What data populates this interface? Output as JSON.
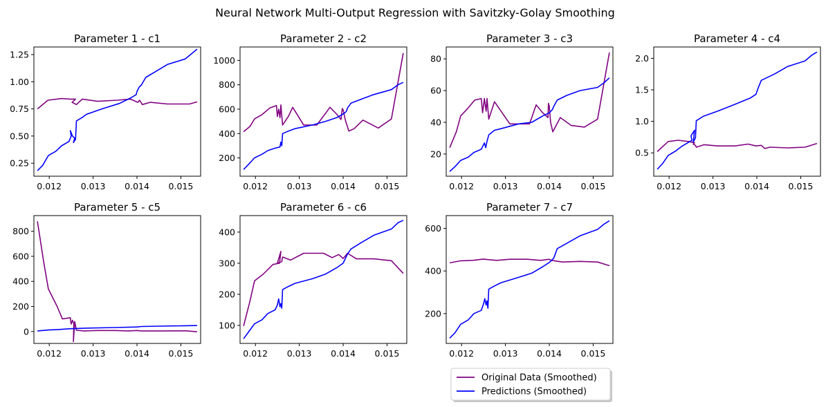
{
  "figure": {
    "title": "Neural Network Multi-Output Regression with Savitzky-Golay Smoothing"
  },
  "legend": {
    "placement": "bottom-center",
    "entries": [
      {
        "label": "Original Data (Smoothed)",
        "color": "#800080"
      },
      {
        "label": "Predictions (Smoothed)",
        "color": "#0000ff"
      }
    ]
  },
  "colors": {
    "original": "#800080",
    "predictions": "#0000ff",
    "axis": "#000000"
  },
  "chart_data": [
    {
      "type": "line",
      "title": "Parameter 1 - c1",
      "xlim": [
        0.01165,
        0.01545
      ],
      "ylim": [
        0.13,
        1.32
      ],
      "xticks": [
        0.012,
        0.013,
        0.014,
        0.015
      ],
      "xtick_labels": [
        "0.012",
        "0.013",
        "0.014",
        "0.015"
      ],
      "yticks": [
        0.25,
        0.5,
        0.75,
        1.0,
        1.25
      ],
      "ytick_labels": [
        "0.25",
        "0.50",
        "0.75",
        "1.00",
        "1.25"
      ],
      "series": [
        {
          "name": "Original Data (Smoothed)",
          "color": "#800080",
          "x": [
            0.01173,
            0.01197,
            0.01228,
            0.01248,
            0.0126,
            0.01252,
            0.01262,
            0.01275,
            0.0131,
            0.01355,
            0.01385,
            0.01402,
            0.01406,
            0.01412,
            0.0143,
            0.0147,
            0.0152,
            0.01537
          ],
          "y": [
            0.75,
            0.83,
            0.845,
            0.84,
            0.84,
            0.81,
            0.79,
            0.84,
            0.82,
            0.83,
            0.84,
            0.81,
            0.83,
            0.79,
            0.81,
            0.795,
            0.795,
            0.815
          ]
        },
        {
          "name": "Predictions (Smoothed)",
          "color": "#0000ff",
          "x": [
            0.01173,
            0.01185,
            0.01198,
            0.01215,
            0.01228,
            0.01245,
            0.0125,
            0.01248,
            0.01253,
            0.01258,
            0.01255,
            0.0126,
            0.01262,
            0.01275,
            0.01285,
            0.0132,
            0.0136,
            0.01385,
            0.01398,
            0.014,
            0.01405,
            0.0141,
            0.0142,
            0.01445,
            0.0147,
            0.0151,
            0.01522,
            0.01537
          ],
          "y": [
            0.18,
            0.23,
            0.32,
            0.36,
            0.41,
            0.45,
            0.5,
            0.55,
            0.5,
            0.48,
            0.44,
            0.47,
            0.64,
            0.67,
            0.7,
            0.75,
            0.8,
            0.85,
            0.88,
            0.91,
            0.95,
            0.97,
            1.04,
            1.1,
            1.16,
            1.21,
            1.25,
            1.3
          ]
        }
      ]
    },
    {
      "type": "line",
      "title": "Parameter 2 - c2",
      "xlim": [
        0.01165,
        0.01545
      ],
      "ylim": [
        50,
        1110
      ],
      "xticks": [
        0.012,
        0.013,
        0.014,
        0.015
      ],
      "xtick_labels": [
        "0.012",
        "0.013",
        "0.014",
        "0.015"
      ],
      "yticks": [
        200,
        400,
        600,
        800,
        1000
      ],
      "ytick_labels": [
        "200",
        "400",
        "600",
        "800",
        "1000"
      ],
      "series": [
        {
          "name": "Original Data (Smoothed)",
          "color": "#800080",
          "x": [
            0.01173,
            0.01188,
            0.01198,
            0.01215,
            0.01233,
            0.01248,
            0.0125,
            0.01253,
            0.01256,
            0.01258,
            0.01262,
            0.01275,
            0.01285,
            0.0131,
            0.0134,
            0.0137,
            0.01385,
            0.01395,
            0.01398,
            0.014,
            0.01405,
            0.01413,
            0.01425,
            0.01445,
            0.0148,
            0.0151,
            0.01537
          ],
          "y": [
            415,
            460,
            520,
            555,
            610,
            630,
            540,
            600,
            530,
            635,
            470,
            540,
            615,
            470,
            470,
            615,
            560,
            515,
            605,
            595,
            510,
            420,
            440,
            510,
            445,
            520,
            1060
          ]
        },
        {
          "name": "Predictions (Smoothed)",
          "color": "#0000ff",
          "x": [
            0.01173,
            0.01185,
            0.01198,
            0.01215,
            0.01228,
            0.01245,
            0.01256,
            0.01258,
            0.0126,
            0.01262,
            0.01275,
            0.0129,
            0.0133,
            0.0136,
            0.01385,
            0.014,
            0.01407,
            0.0141,
            0.01418,
            0.0144,
            0.0147,
            0.0151,
            0.01525,
            0.01537
          ],
          "y": [
            105,
            150,
            200,
            230,
            260,
            280,
            290,
            330,
            300,
            400,
            420,
            440,
            470,
            500,
            530,
            560,
            580,
            610,
            650,
            680,
            720,
            760,
            800,
            820
          ]
        }
      ]
    },
    {
      "type": "line",
      "title": "Parameter 3 - c3",
      "xlim": [
        0.01165,
        0.01545
      ],
      "ylim": [
        6.0,
        87.5
      ],
      "xticks": [
        0.012,
        0.013,
        0.014,
        0.015
      ],
      "xtick_labels": [
        "0.012",
        "0.013",
        "0.014",
        "0.015"
      ],
      "yticks": [
        20,
        40,
        60,
        80
      ],
      "ytick_labels": [
        "20",
        "40",
        "60",
        "80"
      ],
      "series": [
        {
          "name": "Original Data (Smoothed)",
          "color": "#800080",
          "x": [
            0.01173,
            0.01188,
            0.01198,
            0.01215,
            0.0123,
            0.01245,
            0.01248,
            0.01252,
            0.01256,
            0.01258,
            0.01262,
            0.01275,
            0.0131,
            0.01355,
            0.0137,
            0.01385,
            0.01397,
            0.01398,
            0.014,
            0.01403,
            0.01408,
            0.01425,
            0.0145,
            0.0148,
            0.0151,
            0.01537
          ],
          "y": [
            24,
            34,
            44,
            49,
            54,
            55,
            46,
            55,
            47,
            55,
            42,
            53,
            39,
            39,
            51,
            46,
            43,
            52,
            50,
            40,
            34,
            43,
            38,
            37,
            42,
            84
          ]
        },
        {
          "name": "Predictions (Smoothed)",
          "color": "#0000ff",
          "x": [
            0.01173,
            0.01185,
            0.01198,
            0.01215,
            0.01228,
            0.01245,
            0.01252,
            0.01255,
            0.01258,
            0.01262,
            0.01275,
            0.0129,
            0.0133,
            0.0136,
            0.01385,
            0.014,
            0.01407,
            0.0141,
            0.01418,
            0.0144,
            0.0147,
            0.0151,
            0.01525,
            0.01537
          ],
          "y": [
            9,
            12,
            16,
            18,
            21,
            23,
            27,
            24,
            28,
            32,
            35,
            36,
            39,
            40,
            44,
            46,
            48,
            50,
            54,
            57,
            60,
            62,
            65,
            68
          ]
        }
      ]
    },
    {
      "type": "line",
      "title": "Parameter 4 - c4",
      "xlim": [
        0.01165,
        0.01545
      ],
      "ylim": [
        0.13,
        2.18
      ],
      "xticks": [
        0.012,
        0.013,
        0.014,
        0.015
      ],
      "xtick_labels": [
        "0.012",
        "0.013",
        "0.014",
        "0.015"
      ],
      "yticks": [
        0.5,
        1.0,
        1.5,
        2.0
      ],
      "ytick_labels": [
        "0.5",
        "1.0",
        "1.5",
        "2.0"
      ],
      "series": [
        {
          "name": "Original Data (Smoothed)",
          "color": "#800080",
          "x": [
            0.01173,
            0.01198,
            0.0122,
            0.01245,
            0.01258,
            0.01255,
            0.0126,
            0.01262,
            0.0128,
            0.0131,
            0.0135,
            0.0138,
            0.01398,
            0.0141,
            0.01418,
            0.0143,
            0.0147,
            0.0151,
            0.01537
          ],
          "y": [
            0.52,
            0.68,
            0.7,
            0.68,
            0.66,
            0.64,
            0.62,
            0.59,
            0.63,
            0.61,
            0.61,
            0.64,
            0.61,
            0.62,
            0.57,
            0.59,
            0.58,
            0.59,
            0.65
          ]
        },
        {
          "name": "Predictions (Smoothed)",
          "color": "#0000ff",
          "x": [
            0.01173,
            0.01185,
            0.01198,
            0.01215,
            0.01228,
            0.01245,
            0.01252,
            0.0125,
            0.01258,
            0.01255,
            0.0126,
            0.01262,
            0.01278,
            0.0131,
            0.0135,
            0.01385,
            0.01398,
            0.01402,
            0.0141,
            0.0144,
            0.0147,
            0.0151,
            0.01525,
            0.01537
          ],
          "y": [
            0.24,
            0.33,
            0.46,
            0.53,
            0.6,
            0.67,
            0.7,
            0.77,
            0.86,
            0.67,
            0.74,
            1.01,
            1.08,
            1.16,
            1.27,
            1.37,
            1.43,
            1.51,
            1.65,
            1.75,
            1.87,
            1.96,
            2.05,
            2.1
          ]
        }
      ]
    },
    {
      "type": "line",
      "title": "Parameter 5 - c5",
      "xlim": [
        0.01165,
        0.01545
      ],
      "ylim": [
        -95,
        925
      ],
      "xticks": [
        0.012,
        0.013,
        0.014,
        0.015
      ],
      "xtick_labels": [
        "0.012",
        "0.013",
        "0.014",
        "0.015"
      ],
      "yticks": [
        0,
        200,
        400,
        600,
        800
      ],
      "ytick_labels": [
        "0",
        "200",
        "400",
        "600",
        "800"
      ],
      "series": [
        {
          "name": "Original Data (Smoothed)",
          "color": "#800080",
          "x": [
            0.01173,
            0.01187,
            0.01198,
            0.01218,
            0.0123,
            0.01248,
            0.0125,
            0.01253,
            0.01256,
            0.01255,
            0.01258,
            0.01262,
            0.0128,
            0.0131,
            0.0135,
            0.0138,
            0.014,
            0.0141,
            0.0145,
            0.0151,
            0.01537
          ],
          "y": [
            880,
            560,
            340,
            200,
            100,
            110,
            60,
            90,
            60,
            -80,
            80,
            10,
            5,
            8,
            8,
            5,
            8,
            5,
            5,
            6,
            -2
          ]
        },
        {
          "name": "Predictions (Smoothed)",
          "color": "#0000ff",
          "x": [
            0.01173,
            0.01198,
            0.0122,
            0.01245,
            0.0126,
            0.0128,
            0.0135,
            0.014,
            0.0141,
            0.0145,
            0.0151,
            0.01537
          ],
          "y": [
            5,
            12,
            16,
            22,
            24,
            27,
            32,
            36,
            40,
            43,
            46,
            48
          ]
        }
      ]
    },
    {
      "type": "line",
      "title": "Parameter 6 - c6",
      "xlim": [
        0.01165,
        0.01545
      ],
      "ylim": [
        42,
        453
      ],
      "xticks": [
        0.012,
        0.013,
        0.014,
        0.015
      ],
      "xtick_labels": [
        "0.012",
        "0.013",
        "0.014",
        "0.015"
      ],
      "yticks": [
        100,
        200,
        300,
        400
      ],
      "ytick_labels": [
        "100",
        "200",
        "300",
        "400"
      ],
      "series": [
        {
          "name": "Original Data (Smoothed)",
          "color": "#800080",
          "x": [
            0.01173,
            0.01187,
            0.01198,
            0.01218,
            0.0124,
            0.01255,
            0.01258,
            0.0125,
            0.0126,
            0.01262,
            0.0128,
            0.0131,
            0.01355,
            0.01375,
            0.0139,
            0.014,
            0.0141,
            0.0143,
            0.0147,
            0.0151,
            0.01537
          ],
          "y": [
            98,
            175,
            243,
            265,
            296,
            300,
            338,
            300,
            305,
            320,
            310,
            332,
            332,
            318,
            328,
            315,
            332,
            314,
            314,
            308,
            267
          ]
        },
        {
          "name": "Predictions (Smoothed)",
          "color": "#0000ff",
          "x": [
            0.01173,
            0.01185,
            0.01198,
            0.01215,
            0.01228,
            0.01245,
            0.0125,
            0.01253,
            0.01256,
            0.01258,
            0.0126,
            0.01262,
            0.01275,
            0.0129,
            0.0133,
            0.0136,
            0.01385,
            0.014,
            0.0141,
            0.01418,
            0.0144,
            0.0147,
            0.0151,
            0.01525,
            0.01537
          ],
          "y": [
            57,
            80,
            105,
            118,
            138,
            150,
            165,
            185,
            160,
            170,
            155,
            215,
            225,
            235,
            250,
            265,
            285,
            300,
            330,
            346,
            365,
            390,
            410,
            430,
            438
          ]
        }
      ]
    },
    {
      "type": "line",
      "title": "Parameter 7 - c7",
      "xlim": [
        0.01165,
        0.01545
      ],
      "ylim": [
        60,
        660
      ],
      "xticks": [
        0.012,
        0.013,
        0.014,
        0.015
      ],
      "xtick_labels": [
        "0.012",
        "0.013",
        "0.014",
        "0.015"
      ],
      "yticks": [
        200,
        400,
        600
      ],
      "ytick_labels": [
        "200",
        "400",
        "600"
      ],
      "series": [
        {
          "name": "Original Data (Smoothed)",
          "color": "#800080",
          "x": [
            0.01173,
            0.01198,
            0.01225,
            0.0125,
            0.01262,
            0.0128,
            0.0131,
            0.0135,
            0.0138,
            0.014,
            0.01405,
            0.0143,
            0.0147,
            0.0151,
            0.01537
          ],
          "y": [
            438,
            448,
            450,
            456,
            453,
            450,
            455,
            455,
            450,
            455,
            450,
            442,
            445,
            442,
            425
          ]
        },
        {
          "name": "Predictions (Smoothed)",
          "color": "#0000ff",
          "x": [
            0.01173,
            0.01185,
            0.01198,
            0.01215,
            0.01228,
            0.01245,
            0.0125,
            0.01253,
            0.01256,
            0.01258,
            0.0126,
            0.01262,
            0.01275,
            0.0129,
            0.0133,
            0.0136,
            0.01385,
            0.014,
            0.0141,
            0.01418,
            0.0144,
            0.0147,
            0.0151,
            0.01525,
            0.01537
          ],
          "y": [
            85,
            110,
            150,
            170,
            200,
            215,
            245,
            270,
            240,
            260,
            225,
            315,
            330,
            345,
            370,
            390,
            420,
            440,
            460,
            505,
            530,
            565,
            595,
            620,
            636
          ]
        }
      ]
    }
  ]
}
